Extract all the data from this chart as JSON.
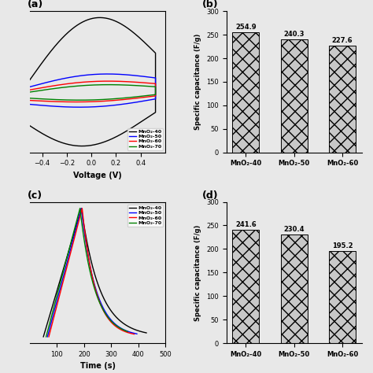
{
  "panel_b": {
    "categories": [
      "MnO₂-40",
      "MnO₂-50",
      "MnO₂-60"
    ],
    "values": [
      254.9,
      240.3,
      227.6
    ],
    "ylabel": "Specific capacitance (F/g)",
    "ylim": [
      0,
      300
    ],
    "yticks": [
      0,
      50,
      100,
      150,
      200,
      250,
      300
    ],
    "label": "(b)"
  },
  "panel_d": {
    "categories": [
      "MnO₂-40",
      "MnO₂-50",
      "MnO₂-60"
    ],
    "values": [
      241.6,
      230.4,
      195.2
    ],
    "ylabel": "Specific capacitance (F/g)",
    "ylim": [
      0,
      300
    ],
    "yticks": [
      0,
      50,
      100,
      150,
      200,
      250,
      300
    ],
    "label": "(d)"
  },
  "panel_a": {
    "xlabel": "Voltage (V)",
    "xlim": [
      -0.5,
      0.6
    ],
    "xticks": [
      -0.4,
      -0.2,
      0.0,
      0.2,
      0.4
    ],
    "label": "(a)",
    "legend": [
      "MnO₂-40",
      "MnO₂-50",
      "MnO₂-60",
      "MnO₂-70"
    ],
    "colors": [
      "black",
      "blue",
      "red",
      "green"
    ]
  },
  "panel_c": {
    "xlabel": "Time (s)",
    "xlim": [
      0,
      500
    ],
    "xticks": [
      100,
      200,
      300,
      400,
      500
    ],
    "label": "(c)",
    "legend": [
      "MnO₂-40",
      "MnO₂-50",
      "MnO₂-60",
      "MnO₂-70"
    ],
    "colors": [
      "black",
      "blue",
      "red",
      "green"
    ]
  },
  "bar_color": "#c8c8c8",
  "bar_hatch": "xx",
  "figure_bg": "#e8e8e8"
}
